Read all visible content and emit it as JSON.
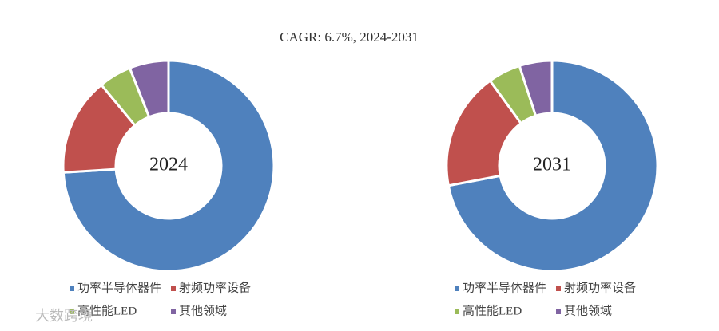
{
  "header": {
    "title": "CAGR:   6.7%, 2024-2031"
  },
  "watermark": "大数跨境",
  "chart_data": [
    {
      "type": "pie",
      "title": "2024",
      "categories": [
        "功率半导体器件",
        "射频功率设备",
        "高性能LED",
        "其他领域"
      ],
      "values": [
        74,
        15,
        5,
        6
      ],
      "colors": [
        "#4f81bd",
        "#c0504d",
        "#9bbb59",
        "#8064a2"
      ]
    },
    {
      "type": "pie",
      "title": "2031",
      "categories": [
        "功率半导体器件",
        "射频功率设备",
        "高性能LED",
        "其他领域"
      ],
      "values": [
        72,
        18,
        5,
        5
      ],
      "colors": [
        "#4f81bd",
        "#c0504d",
        "#9bbb59",
        "#8064a2"
      ]
    }
  ]
}
